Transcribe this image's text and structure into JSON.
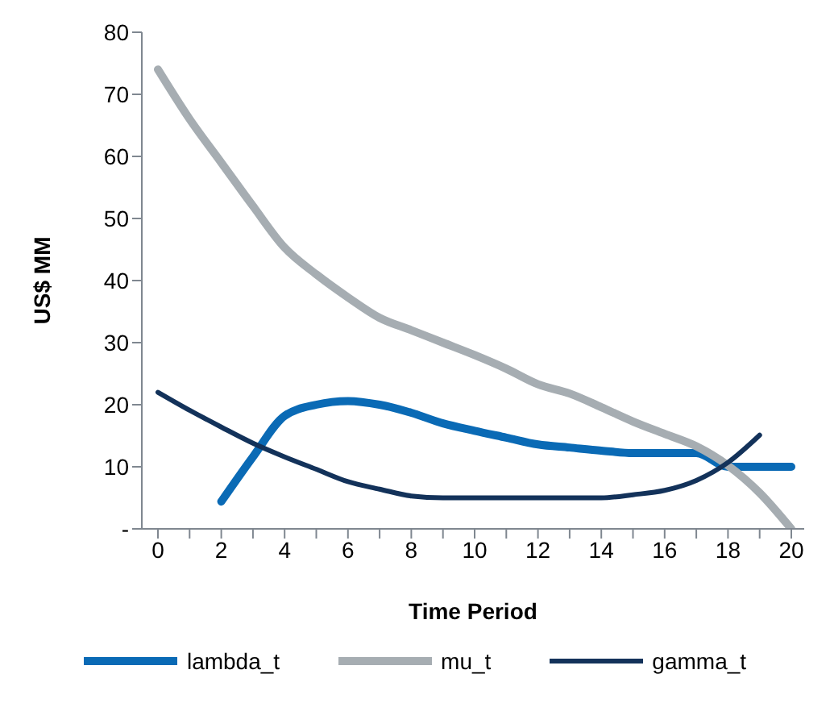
{
  "chart_data": {
    "type": "line",
    "xlabel": "Time Period",
    "ylabel": "US$ MM",
    "categories": [
      "0",
      null,
      "2",
      null,
      "4",
      null,
      "6",
      null,
      "8",
      null,
      "10",
      null,
      "12",
      null,
      "14",
      null,
      "16",
      null,
      "18",
      null,
      "20"
    ],
    "series": [
      {
        "name": "lambda_t",
        "color": "#0a6ab5",
        "values": [
          null,
          null,
          4.4,
          11.6,
          18.2,
          20,
          20.6,
          20,
          18.7,
          17,
          15.8,
          14.7,
          13.6,
          13.1,
          12.6,
          12.2,
          12.2,
          12.2,
          10,
          10,
          10
        ]
      },
      {
        "name": "mu_t",
        "color": "#a6adb2",
        "values": [
          74,
          66,
          59,
          52,
          45.3,
          41,
          37.3,
          34,
          32,
          30,
          28,
          25.8,
          23.3,
          21.8,
          19.6,
          17.3,
          15.3,
          13.3,
          10.2,
          5.8,
          0
        ]
      },
      {
        "name": "gamma_t",
        "color": "#13325a",
        "values": [
          22,
          19.1,
          16.4,
          13.8,
          11.6,
          9.6,
          7.6,
          6.4,
          5.3,
          5,
          5,
          5,
          5,
          5,
          5,
          5.5,
          6.2,
          7.8,
          10.7,
          15.1,
          null
        ]
      }
    ],
    "ylim": [
      0,
      80
    ],
    "yticks": [
      {
        "value": 0,
        "label": "-"
      },
      10,
      20,
      30,
      40,
      50,
      60,
      70,
      80
    ],
    "grid": false,
    "legend": "bottom",
    "marker": "none",
    "line_style": "solid"
  }
}
